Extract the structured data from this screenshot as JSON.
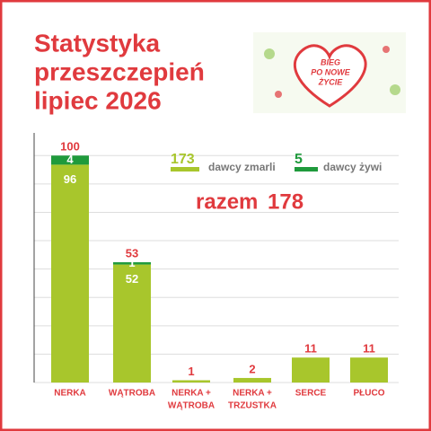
{
  "header": {
    "title_lines": [
      "Statystyka",
      "przeszczepień",
      "lipiec 2026"
    ],
    "logo_lines": [
      "BIEG",
      "PO NOWE",
      "ŻYCIE"
    ]
  },
  "chart_data": {
    "type": "bar",
    "stacked": true,
    "categories": [
      [
        "NERKA"
      ],
      [
        "WĄTROBA"
      ],
      [
        "NERKA +",
        "WĄTROBA"
      ],
      [
        "NERKA +",
        "TRZUSTKA"
      ],
      [
        "SERCE"
      ],
      [
        "PŁUCO"
      ]
    ],
    "series": [
      {
        "name": "dawcy zmarli",
        "color": "#a8c62c",
        "total": 173,
        "values": [
          96,
          52,
          1,
          2,
          11,
          11
        ]
      },
      {
        "name": "dawcy żywi",
        "color": "#1f9a3c",
        "total": 5,
        "values": [
          4,
          1,
          null,
          null,
          null,
          null
        ]
      }
    ],
    "totals": [
      100,
      53,
      1,
      2,
      11,
      11
    ],
    "summary": {
      "label": "razem",
      "value": 178
    },
    "ylim": [
      0,
      110
    ],
    "yticks": [
      0,
      12.5,
      25,
      37.5,
      50,
      62.5,
      75,
      87.5,
      100
    ],
    "grid": true
  }
}
